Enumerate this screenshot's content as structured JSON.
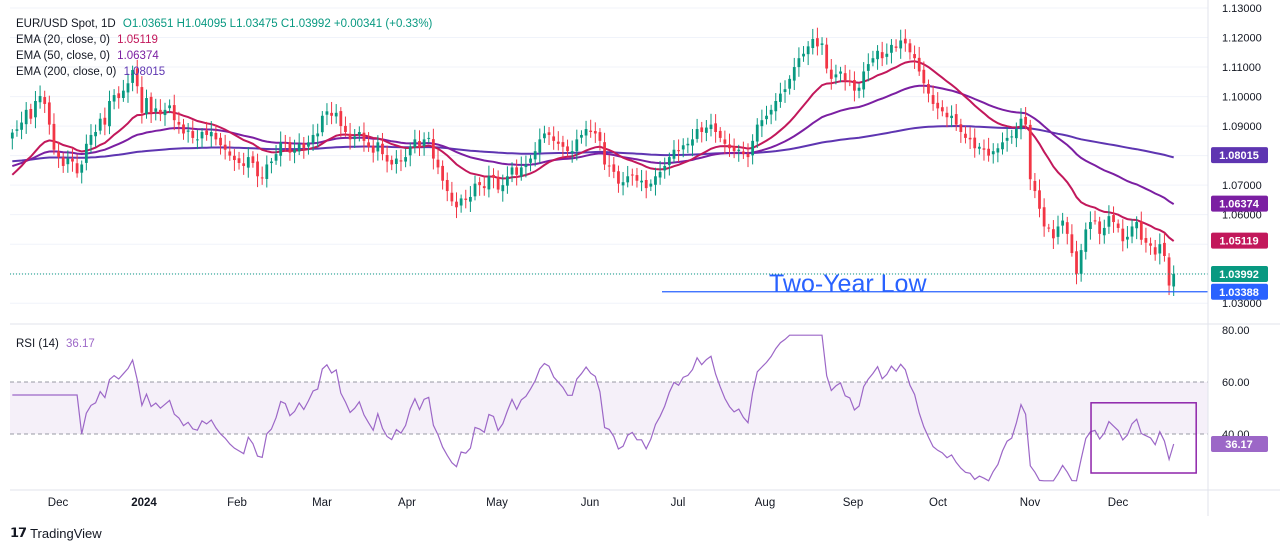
{
  "header": {
    "symbol": "EUR/USD Spot, 1D",
    "ohlc": "O1.03651  H1.04095  L1.03475  C1.03992  +0.00341 (+0.33%)"
  },
  "legend": [
    {
      "label": "EMA (20, close, 0)",
      "value": "1.05119",
      "color": "#c2185b"
    },
    {
      "label": "EMA (50, close, 0)",
      "value": "1.06374",
      "color": "#7b1fa2"
    },
    {
      "label": "EMA (200, close, 0)",
      "value": "1.08015",
      "color": "#5e35b1"
    }
  ],
  "rsi_legend": {
    "label": "RSI (14)",
    "value": "36.17",
    "color": "#9c67c7"
  },
  "annotation": "Two-Year Low",
  "branding": "TradingView",
  "colors": {
    "up": "#089981",
    "down": "#f23645",
    "rsi": "#9c67c7",
    "level_line": "#2962ff"
  },
  "chart_data": [
    {
      "type": "candlestick",
      "title": "EUR/USD Spot, 1D",
      "ylim": [
        1.025,
        1.13
      ],
      "y_ticks": [
        "1.13000",
        "1.12000",
        "1.11000",
        "1.10000",
        "1.09000",
        "1.08000",
        "1.07000",
        "1.06000",
        "1.05000",
        "1.04000",
        "1.03000"
      ],
      "x_labels": [
        "Dec",
        "2024",
        "Feb",
        "Mar",
        "Apr",
        "May",
        "Jun",
        "Jul",
        "Aug",
        "Sep",
        "Oct",
        "Nov",
        "Dec"
      ],
      "price_labels": [
        {
          "text": "1.08015",
          "value": 1.08015,
          "color": "#5e35b1"
        },
        {
          "text": "1.06374",
          "value": 1.06374,
          "color": "#7b1fa2"
        },
        {
          "text": "1.05119",
          "value": 1.05119,
          "color": "#c2185b"
        },
        {
          "text": "1.03992",
          "value": 1.03992,
          "color": "#089981"
        },
        {
          "text": "1.03388",
          "value": 1.03388,
          "color": "#2962ff"
        }
      ],
      "current_close": 1.03992,
      "support_level": 1.03388,
      "close": [
        1.0878,
        1.0889,
        1.0912,
        1.0955,
        1.0925,
        1.0985,
        1.1002,
        1.0975,
        1.0905,
        1.082,
        1.0795,
        1.0765,
        1.079,
        1.078,
        1.074,
        1.077,
        1.084,
        1.087,
        1.088,
        1.0925,
        1.0905,
        1.0985,
        1.1005,
        1.0995,
        1.102,
        1.1045,
        1.109,
        1.1035,
        1.0945,
        1.0995,
        1.0945,
        1.096,
        1.094,
        1.0955,
        1.097,
        1.092,
        1.0905,
        1.0875,
        1.0885,
        1.086,
        1.0855,
        1.088,
        1.087,
        1.088,
        1.0855,
        1.0835,
        1.082,
        1.08,
        1.0785,
        1.0775,
        1.0765,
        1.0795,
        1.0775,
        1.073,
        1.0725,
        1.077,
        1.078,
        1.0805,
        1.0845,
        1.084,
        1.081,
        1.082,
        1.084,
        1.0825,
        1.0845,
        1.087,
        1.0875,
        1.0935,
        1.095,
        1.0935,
        1.0945,
        1.09,
        1.088,
        1.0855,
        1.0865,
        1.088,
        1.085,
        1.083,
        1.081,
        1.0845,
        1.0805,
        1.078,
        1.077,
        1.079,
        1.078,
        1.0795,
        1.083,
        1.0855,
        1.083,
        1.0855,
        1.086,
        1.079,
        1.076,
        1.0715,
        1.068,
        1.0645,
        1.0625,
        1.0655,
        1.065,
        1.066,
        1.0705,
        1.07,
        1.069,
        1.073,
        1.0725,
        1.0685,
        1.07,
        1.073,
        1.076,
        1.0735,
        1.076,
        1.077,
        1.079,
        1.0815,
        1.0855,
        1.0875,
        1.087,
        1.085,
        1.084,
        1.083,
        1.0815,
        1.0815,
        1.0855,
        1.087,
        1.089,
        1.088,
        1.0875,
        1.085,
        1.077,
        1.0765,
        1.0745,
        1.0705,
        1.071,
        1.073,
        1.0735,
        1.0715,
        1.0715,
        1.069,
        1.0705,
        1.073,
        1.0745,
        1.0765,
        1.0795,
        1.082,
        1.0815,
        1.0835,
        1.084,
        1.0855,
        1.089,
        1.088,
        1.0895,
        1.0905,
        1.088,
        1.086,
        1.084,
        1.0825,
        1.0815,
        1.082,
        1.0805,
        1.0795,
        1.085,
        1.0905,
        1.092,
        1.0935,
        1.0955,
        1.0985,
        1.101,
        1.1025,
        1.106,
        1.11,
        1.113,
        1.1145,
        1.117,
        1.1195,
        1.117,
        1.118,
        1.1095,
        1.106,
        1.1075,
        1.1085,
        1.1055,
        1.105,
        1.102,
        1.103,
        1.1085,
        1.111,
        1.113,
        1.1155,
        1.113,
        1.1145,
        1.1175,
        1.1165,
        1.119,
        1.118,
        1.115,
        1.113,
        1.1085,
        1.1045,
        1.101,
        1.0975,
        1.096,
        1.095,
        1.093,
        1.0935,
        1.0905,
        1.088,
        1.086,
        1.0855,
        1.0825,
        1.083,
        1.082,
        1.08,
        1.0815,
        1.0825,
        1.0845,
        1.086,
        1.0865,
        1.089,
        1.0925,
        1.0905,
        1.072,
        1.068,
        1.062,
        1.056,
        1.0555,
        1.052,
        1.056,
        1.058,
        1.0535,
        1.047,
        1.04,
        1.048,
        1.055,
        1.0575,
        1.058,
        1.0535,
        1.0555,
        1.0595,
        1.0575,
        1.0555,
        1.051,
        1.0525,
        1.056,
        1.0575,
        1.0515,
        1.0505,
        1.0495,
        1.0465,
        1.05,
        1.046,
        1.036,
        1.0399
      ],
      "ema20_last": 1.05119,
      "ema50_last": 1.06374,
      "ema200_last": 1.08015
    },
    {
      "type": "line",
      "title": "RSI (14)",
      "ylim": [
        20,
        80
      ],
      "y_ticks": [
        "80.00",
        "60.00",
        "40.00"
      ],
      "bands": [
        40,
        60
      ],
      "current_value": 36.17,
      "highlight_box_indices": [
        234,
        255
      ],
      "highlight_box_range": [
        25,
        52
      ]
    }
  ]
}
